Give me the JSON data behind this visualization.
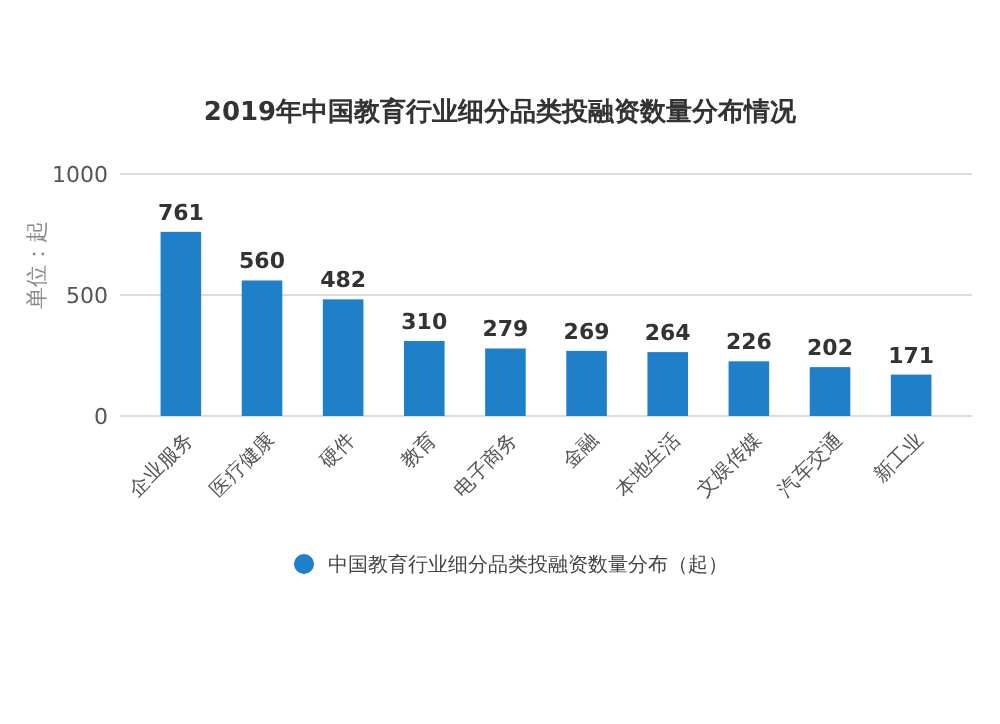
{
  "chart_data": {
    "type": "bar",
    "title": "2019年中国教育行业细分品类投融资数量分布情况",
    "ylabel": "单位：起",
    "categories": [
      "企业服务",
      "医疗健康",
      "硬件",
      "教育",
      "电子商务",
      "金融",
      "本地生活",
      "文娱传媒",
      "汽车交通",
      "新工业"
    ],
    "series": [
      {
        "name": "中国教育行业细分品类投融资数量分布（起）",
        "color": "#1f7fc8",
        "values": [
          761,
          560,
          482,
          310,
          279,
          269,
          264,
          226,
          202,
          171
        ]
      }
    ],
    "ylim": [
      0,
      1000
    ],
    "yticks": [
      0,
      500,
      1000
    ],
    "grid": "y",
    "legend": "bottom",
    "data_labels": true
  }
}
